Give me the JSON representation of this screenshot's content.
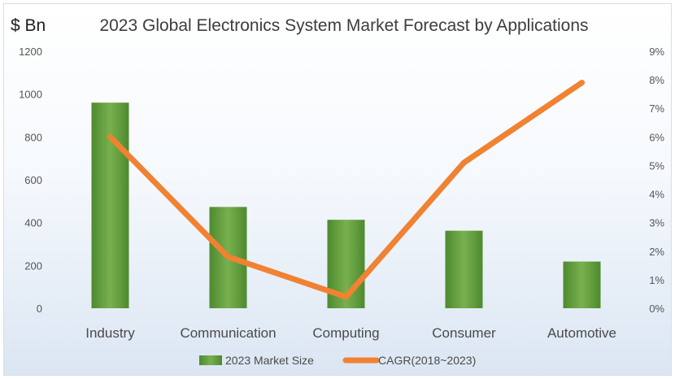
{
  "chart_data": {
    "type": "bar",
    "title": "2023 Global Electronics System Market Forecast by Applications",
    "left_unit_label": "$ Bn",
    "categories": [
      "Industry",
      "Communication",
      "Computing",
      "Consumer",
      "Automotive"
    ],
    "series": [
      {
        "name": "2023 Market Size",
        "type": "bar",
        "axis": "left",
        "color": "#5f9a3c",
        "values": [
          960,
          473,
          413,
          362,
          218
        ]
      },
      {
        "name": "CAGR(2018~2023)",
        "type": "line",
        "axis": "right",
        "color": "#f08232",
        "values": [
          6.0,
          1.8,
          0.4,
          5.1,
          7.9
        ]
      }
    ],
    "left_axis": {
      "ylim": [
        0,
        1200
      ],
      "ticks": [
        "0",
        "200",
        "400",
        "600",
        "800",
        "1000",
        "1200"
      ]
    },
    "right_axis": {
      "ylim": [
        0,
        9
      ],
      "ticks": [
        "0%",
        "1%",
        "2%",
        "3%",
        "4%",
        "5%",
        "6%",
        "7%",
        "8%",
        "9%"
      ]
    },
    "grid": false,
    "legend_position": "bottom"
  }
}
